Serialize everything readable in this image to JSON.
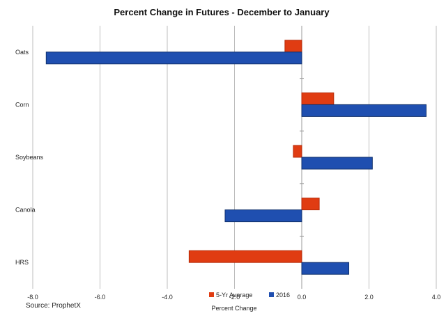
{
  "chart_data": {
    "type": "bar",
    "orientation": "horizontal",
    "title": "Percent Change in Futures - December to January",
    "xlabel": "Percent Change",
    "ylabel": "",
    "xlim": [
      -8.0,
      4.0
    ],
    "xticks": [
      "-8.0",
      "-6.0",
      "-4.0",
      "-2.0",
      "0.0",
      "2.0",
      "4.0"
    ],
    "grid": "vertical",
    "legend_position": "bottom-center",
    "source": "Source: ProphetX",
    "categories": [
      "Oats",
      "Corn",
      "Soybeans",
      "Canola",
      "HRS"
    ],
    "series": [
      {
        "name": "5-Yr Average",
        "color": "#e03c12",
        "values": [
          -0.5,
          0.95,
          -0.25,
          0.52,
          -3.35
        ]
      },
      {
        "name": "2016",
        "color": "#1f4fb0",
        "values": [
          -7.6,
          3.7,
          2.1,
          -2.28,
          1.4
        ]
      }
    ]
  }
}
